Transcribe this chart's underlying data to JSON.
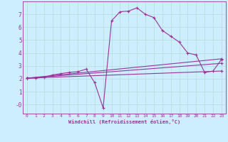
{
  "xlabel": "Windchill (Refroidissement éolien,°C)",
  "bg_color": "#cceeff",
  "grid_color": "#aaddcc",
  "line_color": "#993399",
  "xlim": [
    -0.5,
    23.5
  ],
  "ylim": [
    -0.7,
    8.0
  ],
  "xticks": [
    0,
    1,
    2,
    3,
    4,
    5,
    6,
    7,
    8,
    9,
    10,
    11,
    12,
    13,
    14,
    15,
    16,
    17,
    18,
    19,
    20,
    21,
    22,
    23
  ],
  "yticks": [
    0,
    1,
    2,
    3,
    4,
    5,
    6,
    7
  ],
  "ytick_labels": [
    "-0",
    "1",
    "2",
    "3",
    "4",
    "5",
    "6",
    "7"
  ],
  "series": [
    {
      "x": [
        0,
        1,
        2,
        3,
        4,
        5,
        6,
        7,
        8,
        9,
        10,
        11,
        12,
        13,
        14,
        15,
        16,
        17,
        18,
        19,
        20,
        21,
        22,
        23
      ],
      "y": [
        2.05,
        2.05,
        2.1,
        2.3,
        2.4,
        2.5,
        2.55,
        2.75,
        1.7,
        -0.25,
        6.5,
        7.2,
        7.25,
        7.5,
        7.0,
        6.75,
        5.75,
        5.3,
        4.85,
        4.0,
        3.85,
        2.5,
        2.6,
        3.5
      ]
    },
    {
      "x": [
        0,
        23
      ],
      "y": [
        2.05,
        3.55
      ]
    },
    {
      "x": [
        0,
        23
      ],
      "y": [
        2.05,
        3.2
      ]
    },
    {
      "x": [
        0,
        23
      ],
      "y": [
        2.05,
        2.6
      ]
    }
  ]
}
